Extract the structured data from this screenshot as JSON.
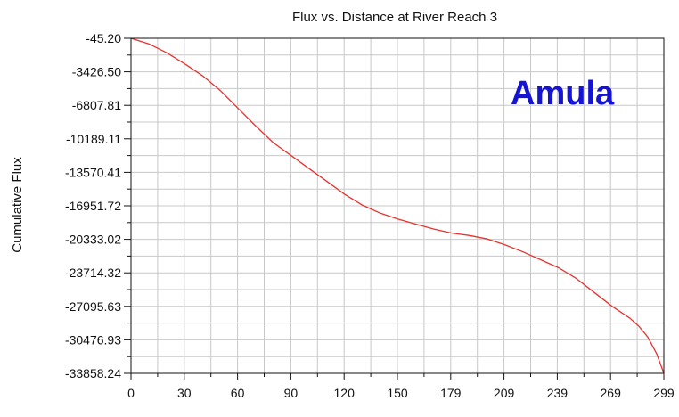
{
  "chart_data": {
    "type": "line",
    "title": "Flux vs. Distance at River Reach 3",
    "xlabel": "",
    "ylabel": "Cumulative Flux",
    "x_ticks": [
      "0",
      "30",
      "60",
      "90",
      "120",
      "150",
      "179",
      "209",
      "239",
      "269",
      "299"
    ],
    "y_ticks": [
      "-45.20",
      "-3426.50",
      "-6807.81",
      "-10189.11",
      "-13570.41",
      "-16951.72",
      "-20333.02",
      "-23714.32",
      "-27095.63",
      "-30476.93",
      "-33858.24"
    ],
    "xlim": [
      0,
      299
    ],
    "ylim": [
      -33858.24,
      -45.2
    ],
    "grid": true,
    "annotation": "Amula",
    "series": [
      {
        "color": "#e8322f",
        "x": [
          0,
          10,
          20,
          30,
          40,
          50,
          60,
          70,
          80,
          90,
          100,
          110,
          120,
          130,
          140,
          150,
          160,
          170,
          180,
          190,
          200,
          210,
          220,
          230,
          240,
          250,
          260,
          270,
          280,
          285,
          290,
          295,
          299
        ],
        "y": [
          -45.2,
          -600,
          -1500,
          -2600,
          -3800,
          -5300,
          -7100,
          -8900,
          -10600,
          -11900,
          -13200,
          -14500,
          -15800,
          -16900,
          -17700,
          -18300,
          -18800,
          -19300,
          -19700,
          -19950,
          -20300,
          -20900,
          -21600,
          -22400,
          -23200,
          -24300,
          -25700,
          -27100,
          -28300,
          -29100,
          -30200,
          -31900,
          -33858.24
        ]
      }
    ]
  }
}
